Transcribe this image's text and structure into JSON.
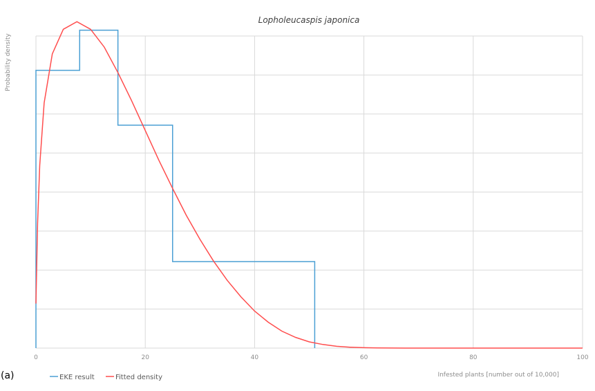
{
  "panel_label": "(a)",
  "chart_data": {
    "type": "line",
    "title": "Lopholeucaspis japonica",
    "xlabel": "Infested plants [number out of 10,000]",
    "ylabel": "Probability density",
    "xlim": [
      0,
      100
    ],
    "xticks": [
      0,
      20,
      40,
      60,
      80,
      100
    ],
    "ylim": [
      0,
      0.07
    ],
    "grid": true,
    "legend_position": "bottom-left",
    "series": [
      {
        "name": "EKE result",
        "color": "#4a9fd4",
        "style": "step",
        "bins": [
          {
            "x0": 0,
            "x1": 8,
            "y": 0.0623
          },
          {
            "x0": 8,
            "x1": 15,
            "y": 0.0713
          },
          {
            "x0": 15,
            "x1": 25,
            "y": 0.05
          },
          {
            "x0": 25,
            "x1": 51,
            "y": 0.0194
          }
        ]
      },
      {
        "name": "Fitted density",
        "color": "#ff4d4d",
        "style": "line",
        "x": [
          0,
          0.3,
          0.7,
          1.5,
          3,
          5,
          7.5,
          10,
          12.5,
          15,
          17.5,
          20,
          22.5,
          25,
          27.5,
          30,
          32.5,
          35,
          37.5,
          40,
          42.5,
          45,
          47.5,
          50,
          52.5,
          55,
          57.5,
          60,
          62.5,
          65,
          67.5,
          70,
          75,
          80,
          90,
          100
        ],
        "y": [
          0.01,
          0.028,
          0.041,
          0.055,
          0.066,
          0.0715,
          0.0732,
          0.0715,
          0.0675,
          0.0618,
          0.0555,
          0.0488,
          0.0421,
          0.0358,
          0.0298,
          0.0244,
          0.0195,
          0.0152,
          0.0115,
          0.0083,
          0.0058,
          0.0038,
          0.0024,
          0.0014,
          0.0008,
          0.0004,
          0.0002,
          0.0001,
          4e-05,
          1e-05,
          0,
          0,
          0,
          0,
          0,
          0
        ]
      }
    ]
  }
}
